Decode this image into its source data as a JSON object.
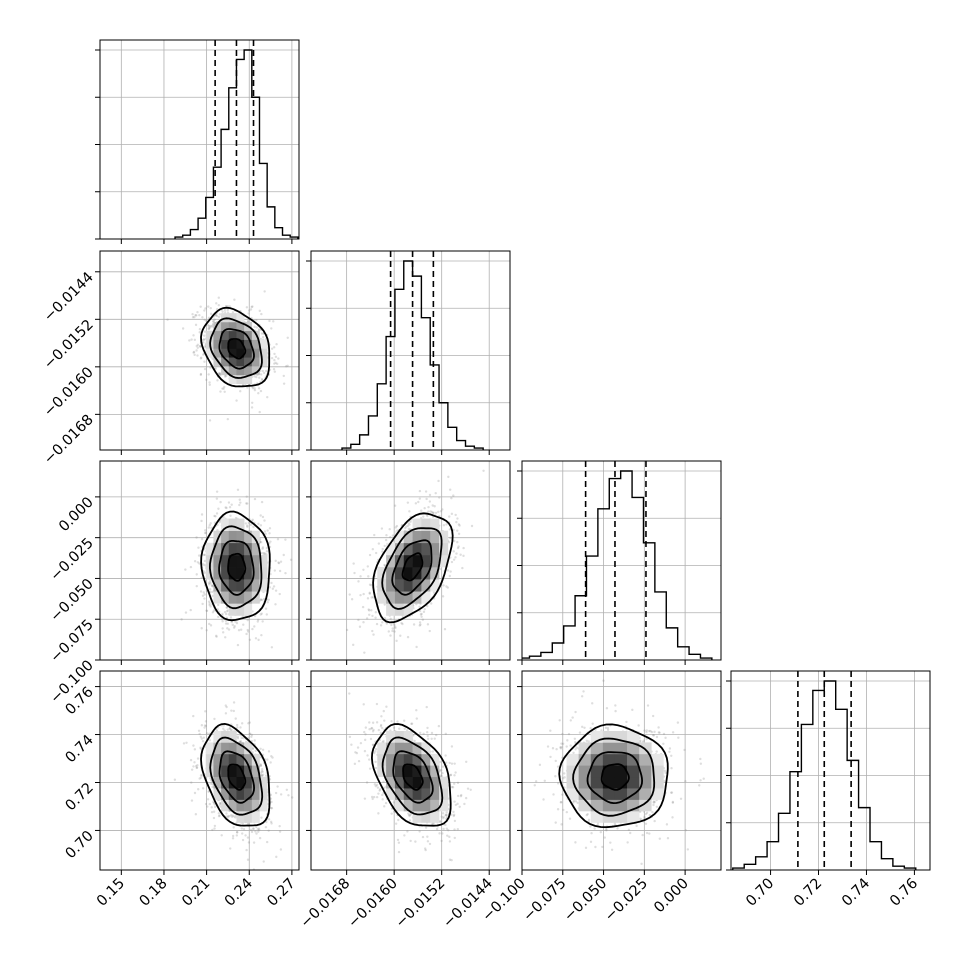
{
  "chart_data": {
    "type": "corner",
    "n_params": 4,
    "grid": true,
    "params": [
      {
        "range": [
          0.135,
          0.275
        ],
        "ticks": [
          0.15,
          0.18,
          0.21,
          0.24,
          0.27
        ],
        "tick_labels": [
          "0.15",
          "0.18",
          "0.21",
          "0.24",
          "0.27"
        ],
        "median": 0.231,
        "sigma": 0.012,
        "quantiles": [
          0.216,
          0.231,
          0.243
        ]
      },
      {
        "range": [
          -0.0174,
          -0.01405
        ],
        "ticks": [
          -0.0168,
          -0.016,
          -0.0152,
          -0.0144
        ],
        "tick_labels": [
          "−0.0168",
          "−0.0160",
          "−0.0152",
          "−0.0144"
        ],
        "median": -0.01569,
        "sigma": 0.00033,
        "quantiles": [
          -0.01606,
          -0.01569,
          -0.01534
        ]
      },
      {
        "range": [
          -0.1,
          0.022
        ],
        "ticks": [
          -0.1,
          -0.075,
          -0.05,
          -0.025,
          0.0
        ],
        "tick_labels": [
          "−0.100",
          "−0.075",
          "−0.050",
          "−0.025",
          "0.000"
        ],
        "median": -0.043,
        "sigma": 0.0165,
        "quantiles": [
          -0.061,
          -0.043,
          -0.024
        ]
      },
      {
        "range": [
          0.6835,
          0.7665
        ],
        "ticks": [
          0.7,
          0.72,
          0.74,
          0.76
        ],
        "tick_labels": [
          "0.70",
          "0.72",
          "0.74",
          "0.76"
        ],
        "median": 0.7224,
        "sigma": 0.0106,
        "quantiles": [
          0.7114,
          0.7224,
          0.7336
        ]
      }
    ],
    "correlations": [
      [
        1.0,
        -0.25,
        -0.05,
        -0.35
      ],
      [
        -0.25,
        1.0,
        0.45,
        -0.4
      ],
      [
        -0.05,
        0.45,
        1.0,
        0.0
      ],
      [
        -0.35,
        -0.4,
        0.0,
        1.0
      ]
    ],
    "histograms": [
      [
        1,
        2,
        5,
        11,
        22,
        38,
        58,
        80,
        95,
        100,
        75,
        40,
        17,
        6,
        2,
        1
      ],
      [
        1,
        3,
        8,
        18,
        35,
        60,
        85,
        100,
        92,
        70,
        45,
        25,
        12,
        5,
        2,
        1
      ],
      [
        1,
        2,
        4,
        9,
        18,
        34,
        55,
        80,
        96,
        100,
        86,
        62,
        36,
        17,
        7,
        3,
        1
      ],
      [
        1,
        3,
        7,
        15,
        30,
        52,
        77,
        95,
        100,
        85,
        58,
        33,
        15,
        6,
        2,
        1
      ]
    ]
  }
}
